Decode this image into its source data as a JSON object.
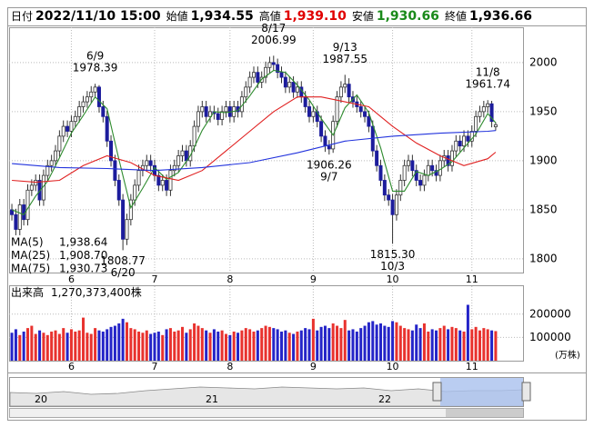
{
  "header": [
    {
      "label": "日付",
      "value": "2022/11/10 15:00",
      "color": "#000000"
    },
    {
      "label": "始値",
      "value": "1,934.55",
      "color": "#000000"
    },
    {
      "label": "高値",
      "value": "1,939.10",
      "color": "#e00000"
    },
    {
      "label": "安値",
      "value": "1,930.66",
      "color": "#1a8a1a"
    },
    {
      "label": "終値",
      "value": "1,936.66",
      "color": "#000000"
    }
  ],
  "chart_data": [
    {
      "type": "candlestick",
      "open": [
        1850,
        1845,
        1830,
        1855,
        1840,
        1870,
        1875,
        1880,
        1860,
        1885,
        1895,
        1900,
        1910,
        1925,
        1935,
        1930,
        1940,
        1945,
        1955,
        1960,
        1965,
        1970,
        1975,
        1955,
        1945,
        1920,
        1900,
        1880,
        1860,
        1820,
        1840,
        1860,
        1875,
        1890,
        1895,
        1900,
        1895,
        1885,
        1875,
        1880,
        1870,
        1890,
        1895,
        1905,
        1910,
        1900,
        1915,
        1935,
        1950,
        1955,
        1945,
        1950,
        1948,
        1942,
        1950,
        1955,
        1945,
        1955,
        1950,
        1965,
        1975,
        1985,
        1990,
        1980,
        1985,
        1995,
        2000,
        1998,
        1990,
        1985,
        1975,
        1980,
        1970,
        1975,
        1965,
        1955,
        1945,
        1950,
        1940,
        1925,
        1915,
        1912,
        1940,
        1965,
        1975,
        1978,
        1965,
        1960,
        1955,
        1950,
        1945,
        1935,
        1910,
        1895,
        1880,
        1865,
        1860,
        1845,
        1865,
        1880,
        1895,
        1900,
        1890,
        1880,
        1875,
        1885,
        1895,
        1890,
        1885,
        1900,
        1905,
        1895,
        1910,
        1920,
        1915,
        1925,
        1920,
        1930,
        1945,
        1950,
        1955,
        1958,
        1934.55
      ],
      "high": [
        1856,
        1851,
        1861,
        1861,
        1876,
        1881,
        1886,
        1886,
        1891,
        1901,
        1906,
        1916,
        1931,
        1941,
        1941,
        1946,
        1951,
        1961,
        1966,
        1971,
        1976,
        1978.39,
        1977,
        1961,
        1951,
        1926,
        1906,
        1886,
        1866,
        1846,
        1866,
        1881,
        1896,
        1901,
        1906,
        1906,
        1901,
        1891,
        1886,
        1886,
        1896,
        1901,
        1911,
        1916,
        1916,
        1921,
        1941,
        1956,
        1961,
        1961,
        1956,
        1956,
        1954,
        1956,
        1961,
        1961,
        1961,
        1961,
        1971,
        1981,
        1991,
        1996,
        1996,
        1991,
        2001,
        2006,
        2006.99,
        2004,
        1996,
        1991,
        1986,
        1986,
        1981,
        1981,
        1971,
        1961,
        1956,
        1956,
        1946,
        1931,
        1921,
        1946,
        1971,
        1981,
        1987.55,
        1984,
        1971,
        1966,
        1961,
        1956,
        1951,
        1941,
        1916,
        1901,
        1886,
        1871,
        1866,
        1871,
        1886,
        1901,
        1906,
        1906,
        1896,
        1886,
        1891,
        1901,
        1901,
        1896,
        1906,
        1911,
        1911,
        1916,
        1926,
        1926,
        1931,
        1931,
        1936,
        1951,
        1956,
        1961,
        1961.74,
        1961,
        1939.1
      ],
      "low": [
        1839,
        1824,
        1824,
        1834,
        1834,
        1864,
        1869,
        1854,
        1854,
        1879,
        1889,
        1894,
        1904,
        1919,
        1924,
        1924,
        1934,
        1939,
        1949,
        1954,
        1959,
        1964,
        1949,
        1939,
        1914,
        1894,
        1874,
        1854,
        1808.77,
        1814,
        1834,
        1854,
        1869,
        1884,
        1889,
        1889,
        1879,
        1869,
        1869,
        1864,
        1864,
        1884,
        1889,
        1899,
        1894,
        1894,
        1909,
        1929,
        1944,
        1939,
        1939,
        1942,
        1936,
        1936,
        1944,
        1939,
        1939,
        1944,
        1944,
        1959,
        1969,
        1979,
        1974,
        1974,
        1979,
        1989,
        1992,
        1984,
        1979,
        1969,
        1969,
        1964,
        1964,
        1959,
        1949,
        1939,
        1939,
        1934,
        1919,
        1909,
        1906.26,
        1908,
        1934,
        1959,
        1969,
        1959,
        1954,
        1949,
        1944,
        1939,
        1929,
        1904,
        1889,
        1874,
        1859,
        1854,
        1815.3,
        1839,
        1859,
        1874,
        1889,
        1884,
        1874,
        1869,
        1869,
        1879,
        1884,
        1879,
        1879,
        1894,
        1889,
        1889,
        1904,
        1909,
        1909,
        1914,
        1914,
        1924,
        1939,
        1944,
        1949,
        1934,
        1930.66
      ],
      "close": [
        1845,
        1830,
        1855,
        1840,
        1870,
        1875,
        1880,
        1860,
        1885,
        1895,
        1900,
        1910,
        1925,
        1935,
        1930,
        1940,
        1945,
        1955,
        1960,
        1965,
        1970,
        1975,
        1955,
        1945,
        1920,
        1900,
        1880,
        1860,
        1820,
        1840,
        1860,
        1875,
        1890,
        1895,
        1900,
        1895,
        1885,
        1875,
        1880,
        1870,
        1890,
        1895,
        1905,
        1910,
        1900,
        1915,
        1935,
        1950,
        1955,
        1945,
        1950,
        1948,
        1942,
        1950,
        1955,
        1945,
        1955,
        1950,
        1965,
        1975,
        1985,
        1990,
        1980,
        1985,
        1995,
        2000,
        1998,
        1990,
        1985,
        1975,
        1980,
        1970,
        1975,
        1965,
        1955,
        1945,
        1950,
        1940,
        1925,
        1915,
        1912,
        1940,
        1965,
        1975,
        1978,
        1965,
        1960,
        1955,
        1950,
        1945,
        1935,
        1910,
        1895,
        1880,
        1865,
        1860,
        1845,
        1865,
        1880,
        1895,
        1900,
        1890,
        1880,
        1875,
        1885,
        1895,
        1890,
        1885,
        1900,
        1905,
        1895,
        1910,
        1920,
        1915,
        1925,
        1920,
        1930,
        1945,
        1950,
        1955,
        1958,
        1940,
        1936.66
      ],
      "up_color": "#ffffff",
      "down_color": "#1c1c9c",
      "outline_color": "#333333",
      "xlim": [
        -0.7,
        128.9
      ],
      "ylim": [
        1786,
        2036
      ],
      "yticks": [
        1800,
        1850,
        1900,
        1950,
        2000
      ],
      "xticks": [
        {
          "value": 15,
          "label": "6"
        },
        {
          "value": 36,
          "label": "7"
        },
        {
          "value": 55,
          "label": "8"
        },
        {
          "value": 76,
          "label": "9"
        },
        {
          "value": 96,
          "label": "10"
        },
        {
          "value": 116,
          "label": "11"
        }
      ],
      "grid": true,
      "series": [
        {
          "name": "MA(5)",
          "color": "#2e8b2e",
          "x": [
            0,
            3,
            6,
            9,
            12,
            15,
            18,
            21,
            24,
            27,
            30,
            33,
            36,
            39,
            42,
            45,
            48,
            51,
            54,
            57,
            60,
            63,
            66,
            69,
            72,
            75,
            78,
            81,
            84,
            87,
            90,
            93,
            96,
            99,
            102,
            105,
            108,
            111,
            114,
            117,
            120,
            122
          ],
          "values": [
            1850,
            1845,
            1864,
            1879,
            1903,
            1928,
            1946,
            1965,
            1953,
            1901,
            1852,
            1872,
            1893,
            1881,
            1888,
            1905,
            1931,
            1950,
            1949,
            1951,
            1966,
            1983,
            1992,
            1990,
            1977,
            1962,
            1943,
            1926,
            1954,
            1967,
            1949,
            1913,
            1869,
            1869,
            1889,
            1885,
            1891,
            1899,
            1913,
            1927,
            1948,
            1938.64
          ],
          "latest": {
            "value": 1938.64,
            "label": "1,938.64"
          }
        },
        {
          "name": "MA(25)",
          "color": "#e02020",
          "x": [
            0,
            6,
            12,
            18,
            24,
            30,
            36,
            42,
            48,
            54,
            60,
            66,
            72,
            78,
            84,
            90,
            96,
            102,
            108,
            114,
            120,
            122
          ],
          "values": [
            1880,
            1878,
            1880,
            1895,
            1905,
            1898,
            1885,
            1880,
            1890,
            1910,
            1930,
            1950,
            1965,
            1965,
            1960,
            1955,
            1935,
            1918,
            1905,
            1895,
            1902,
            1908.7
          ],
          "latest": {
            "value": 1908.7,
            "label": "1,908.70"
          }
        },
        {
          "name": "MA(75)",
          "color": "#2233dd",
          "x": [
            0,
            12,
            24,
            36,
            48,
            60,
            72,
            84,
            96,
            108,
            120,
            122
          ],
          "values": [
            1897,
            1893,
            1892,
            1890,
            1893,
            1898,
            1908,
            1920,
            1925,
            1928,
            1930,
            1930.73
          ],
          "latest": {
            "value": 1930.73,
            "label": "1,930.73"
          }
        }
      ],
      "annotations": [
        {
          "date": "6/9",
          "value": 1978.39,
          "x": 21,
          "kind": "high"
        },
        {
          "date": "6/20",
          "value": 1808.77,
          "x": 28,
          "kind": "low"
        },
        {
          "date": "8/17",
          "value": 2006.99,
          "x": 66,
          "kind": "high"
        },
        {
          "date": "9/7",
          "value": 1906.26,
          "x": 80,
          "kind": "low"
        },
        {
          "date": "9/13",
          "value": 1987.55,
          "x": 84,
          "kind": "high"
        },
        {
          "date": "10/3",
          "value": 1815.3,
          "label": "1815.30",
          "x": 96,
          "kind": "low"
        },
        {
          "date": "11/8",
          "value": 1961.74,
          "x": 120,
          "kind": "high"
        }
      ]
    },
    {
      "type": "bar",
      "title": "出来高",
      "latest": {
        "value": 127037.34,
        "label": "1,270,373,400株"
      },
      "unit": "(万株)",
      "values": [
        120000,
        135000,
        110000,
        125000,
        140000,
        150000,
        115000,
        130000,
        120000,
        110000,
        125000,
        130000,
        115000,
        140000,
        120000,
        135000,
        125000,
        130000,
        185000,
        120000,
        115000,
        140000,
        130000,
        125000,
        135000,
        145000,
        150000,
        160000,
        180000,
        165000,
        140000,
        135000,
        125000,
        120000,
        130000,
        115000,
        120000,
        125000,
        110000,
        135000,
        140000,
        125000,
        130000,
        145000,
        120000,
        135000,
        160000,
        150000,
        140000,
        130000,
        120000,
        135000,
        125000,
        130000,
        115000,
        110000,
        125000,
        120000,
        130000,
        140000,
        135000,
        125000,
        130000,
        140000,
        150000,
        145000,
        140000,
        135000,
        125000,
        130000,
        120000,
        115000,
        125000,
        130000,
        140000,
        135000,
        180000,
        130000,
        145000,
        150000,
        140000,
        160000,
        150000,
        140000,
        175000,
        130000,
        135000,
        125000,
        140000,
        150000,
        165000,
        170000,
        155000,
        160000,
        150000,
        145000,
        170000,
        165000,
        150000,
        140000,
        135000,
        130000,
        155000,
        140000,
        160000,
        125000,
        135000,
        130000,
        140000,
        150000,
        135000,
        145000,
        140000,
        130000,
        125000,
        240000,
        135000,
        145000,
        130000,
        140000,
        135000,
        130000,
        127037.34
      ],
      "up_color": "#e8322e",
      "down_color": "#2424c8",
      "xlim": [
        -0.7,
        128.9
      ],
      "ylim": [
        0,
        320000
      ],
      "yticks": [
        100000,
        200000
      ],
      "xticks": [
        {
          "value": 15,
          "label": "6"
        },
        {
          "value": 36,
          "label": "7"
        },
        {
          "value": 55,
          "label": "8"
        },
        {
          "value": 76,
          "label": "9"
        },
        {
          "value": 96,
          "label": "10"
        },
        {
          "value": 116,
          "label": "11"
        }
      ],
      "grid": true
    }
  ],
  "navigator": {
    "labels": [
      "20",
      "21",
      "22"
    ]
  }
}
